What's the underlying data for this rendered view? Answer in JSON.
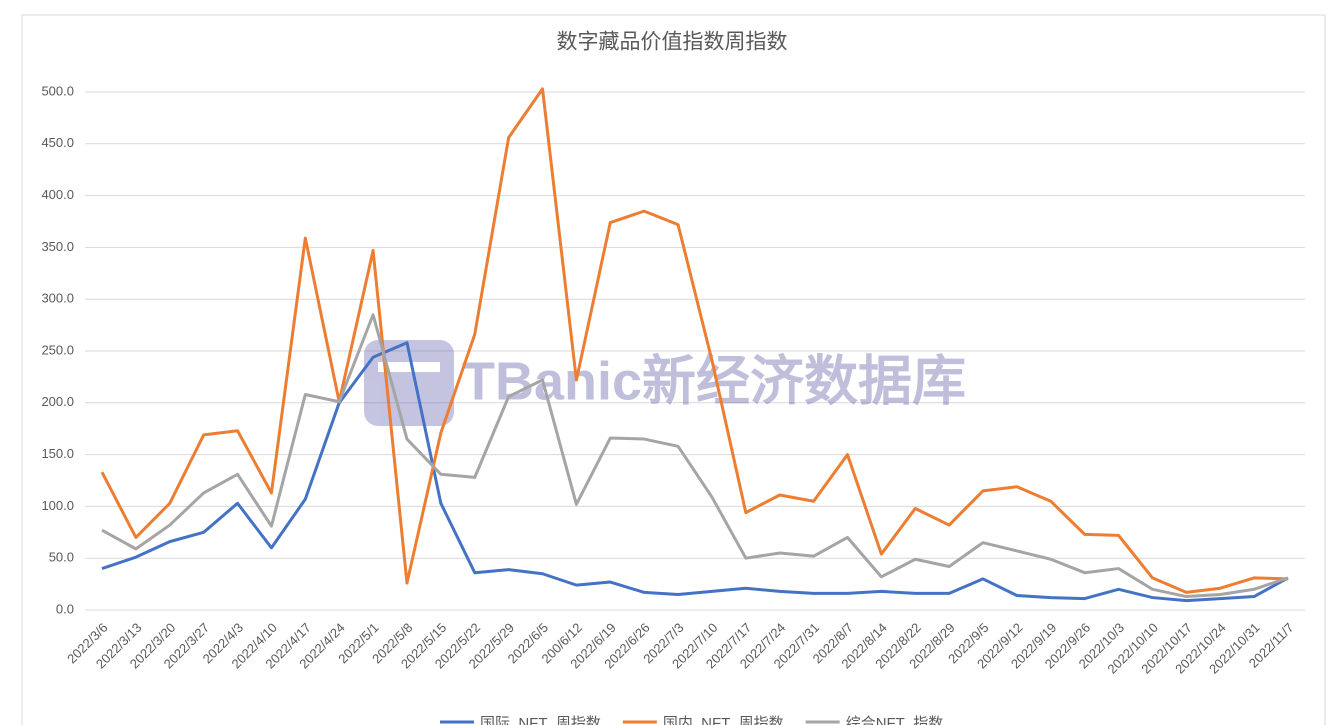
{
  "chart_data": {
    "type": "line",
    "title": "数字藏品价值指数周指数",
    "watermark": "TBanic新经济数据库",
    "categories": [
      "2022/3/6",
      "2022/3/13",
      "2022/3/20",
      "2022/3/27",
      "2022/4/3",
      "2022/4/10",
      "2022/4/17",
      "2022/4/24",
      "2022/5/1",
      "2022/5/8",
      "2022/5/15",
      "2022/5/22",
      "2022/5/29",
      "2022/6/5",
      "200/6/12",
      "2022/6/19",
      "2022/6/26",
      "2022/7/3",
      "2022/7/10",
      "2022/7/17",
      "2022/7/24",
      "2022/7/31",
      "2022/8/7",
      "2022/8/14",
      "2022/8/22",
      "2022/8/29",
      "2022/9/5",
      "2022/9/12",
      "2022/9/19",
      "2022/9/26",
      "2022/10/3",
      "2022/10/10",
      "2022/10/17",
      "2022/10/24",
      "2022/10/31",
      "2022/11/7"
    ],
    "series": [
      {
        "name": "国际_NFT_周指数",
        "color": "#4472c4",
        "values": [
          40,
          51,
          66,
          75,
          103,
          60,
          107,
          200,
          244,
          258,
          103,
          36,
          39,
          35,
          24,
          27,
          17,
          15,
          18,
          21,
          18,
          16,
          16,
          18,
          16,
          16,
          30,
          14,
          12,
          11,
          20,
          12,
          9,
          11,
          13,
          31
        ]
      },
      {
        "name": "国内_NFT_周指数",
        "color": "#ed7d31",
        "values": [
          133,
          70,
          103,
          169,
          173,
          113,
          359,
          201,
          347,
          26,
          171,
          266,
          456,
          503,
          222,
          374,
          385,
          372,
          241,
          94,
          111,
          105,
          150,
          54,
          98,
          82,
          115,
          119,
          105,
          73,
          72,
          31,
          17,
          21,
          31,
          30
        ]
      },
      {
        "name": "综合NFT_指数",
        "color": "#a5a5a5",
        "values": [
          77,
          59,
          82,
          113,
          131,
          81,
          208,
          201,
          285,
          165,
          131,
          128,
          206,
          222,
          102,
          166,
          165,
          158,
          109,
          50,
          55,
          52,
          70,
          32,
          49,
          42,
          65,
          57,
          49,
          36,
          40,
          20,
          13,
          15,
          20,
          31
        ]
      }
    ],
    "ylim": [
      0,
      500
    ],
    "yticks": [
      {
        "value": 0,
        "label": "0.0"
      },
      {
        "value": 50,
        "label": "50.0"
      },
      {
        "value": 100,
        "label": "100.0"
      },
      {
        "value": 150,
        "label": "150.0"
      },
      {
        "value": 200,
        "label": "200.0"
      },
      {
        "value": 250,
        "label": "250.0"
      },
      {
        "value": 300,
        "label": "300.0"
      },
      {
        "value": 350,
        "label": "350.0"
      },
      {
        "value": 400,
        "label": "400.0"
      },
      {
        "value": 450,
        "label": "450.0"
      },
      {
        "value": 500,
        "label": "500.0"
      }
    ],
    "grid": true
  }
}
